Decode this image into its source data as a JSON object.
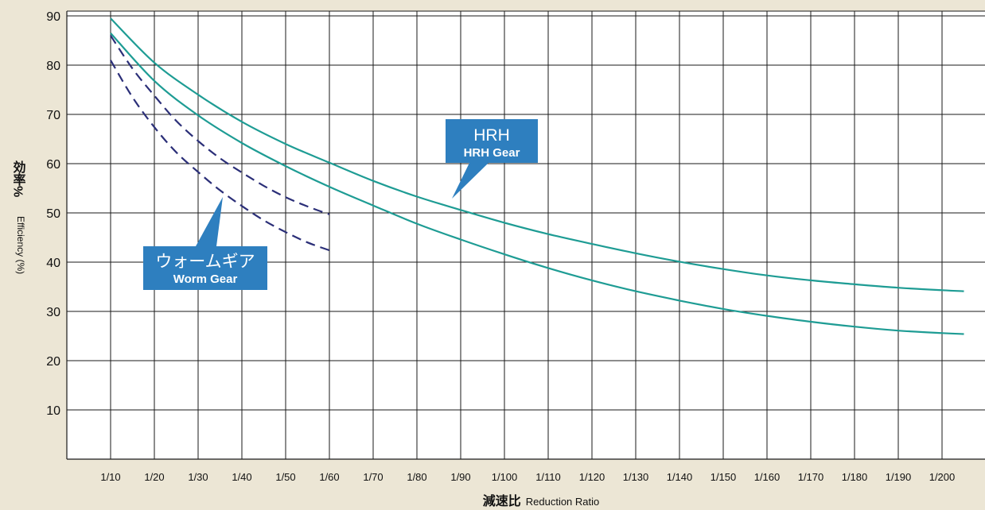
{
  "colors": {
    "background": "#ECE6D5",
    "plot_background": "#FFFFFF",
    "grid": "#1a1a1a",
    "hrh_curve": "#1E9C94",
    "worm_curve": "#2B2F78",
    "label_box": "#2E7FBF",
    "label_text": "#FFFFFF"
  },
  "chart_data": {
    "type": "line",
    "title": "",
    "xlabel_ja": "減速比",
    "xlabel_en": "Reduction Ratio",
    "ylabel_ja": "効率%",
    "ylabel_en": "Efficiency (%)",
    "categories": [
      "1/10",
      "1/20",
      "1/30",
      "1/40",
      "1/50",
      "1/60",
      "1/70",
      "1/80",
      "1/90",
      "1/100",
      "1/110",
      "1/120",
      "1/130",
      "1/140",
      "1/150",
      "1/160",
      "1/170",
      "1/180",
      "1/190",
      "1/200"
    ],
    "y_ticks": [
      10,
      20,
      30,
      40,
      50,
      60,
      70,
      80,
      90
    ],
    "ylim": [
      0,
      91
    ],
    "grid": true,
    "series": [
      {
        "group": "hrh",
        "dash": false,
        "points": [
          [
            10,
            89.5
          ],
          [
            20,
            80.5
          ],
          [
            30,
            74
          ],
          [
            40,
            68.5
          ],
          [
            50,
            64
          ],
          [
            60,
            60.2
          ],
          [
            70,
            56.5
          ],
          [
            80,
            53.3
          ],
          [
            90,
            50.6
          ],
          [
            100,
            48
          ],
          [
            110,
            45.7
          ],
          [
            120,
            43.7
          ],
          [
            130,
            41.8
          ],
          [
            140,
            40.1
          ],
          [
            150,
            38.6
          ],
          [
            160,
            37.3
          ],
          [
            170,
            36.3
          ],
          [
            180,
            35.5
          ],
          [
            190,
            34.8
          ],
          [
            200,
            34.3
          ],
          [
            205,
            34.1
          ]
        ]
      },
      {
        "group": "hrh",
        "dash": false,
        "points": [
          [
            10,
            86.5
          ],
          [
            20,
            76.8
          ],
          [
            30,
            69.8
          ],
          [
            40,
            64.2
          ],
          [
            50,
            59.5
          ],
          [
            60,
            55.3
          ],
          [
            70,
            51.5
          ],
          [
            80,
            47.8
          ],
          [
            90,
            44.6
          ],
          [
            100,
            41.6
          ],
          [
            110,
            38.8
          ],
          [
            120,
            36.3
          ],
          [
            130,
            34.1
          ],
          [
            140,
            32.2
          ],
          [
            150,
            30.5
          ],
          [
            160,
            29.1
          ],
          [
            170,
            27.9
          ],
          [
            180,
            26.9
          ],
          [
            190,
            26.1
          ],
          [
            200,
            25.6
          ],
          [
            205,
            25.4
          ]
        ]
      },
      {
        "group": "worm",
        "dash": true,
        "points": [
          [
            10,
            86
          ],
          [
            15,
            79.3
          ],
          [
            20,
            73.8
          ],
          [
            25,
            68.7
          ],
          [
            30,
            64.6
          ],
          [
            35,
            61.1
          ],
          [
            40,
            58.2
          ],
          [
            45,
            55.5
          ],
          [
            50,
            53.2
          ],
          [
            55,
            51.3
          ],
          [
            60,
            49.7
          ]
        ]
      },
      {
        "group": "worm",
        "dash": true,
        "points": [
          [
            10,
            81
          ],
          [
            15,
            73.5
          ],
          [
            20,
            67.4
          ],
          [
            25,
            62.3
          ],
          [
            30,
            58.3
          ],
          [
            35,
            54.6
          ],
          [
            40,
            51.4
          ],
          [
            45,
            48.5
          ],
          [
            50,
            46.1
          ],
          [
            55,
            44
          ],
          [
            60,
            42.4
          ]
        ]
      }
    ],
    "annotations": [
      {
        "id": "hrh",
        "title": "HRH",
        "subtitle": "HRH Gear"
      },
      {
        "id": "worm",
        "title": "ウォームギア",
        "subtitle": "Worm Gear"
      }
    ]
  }
}
